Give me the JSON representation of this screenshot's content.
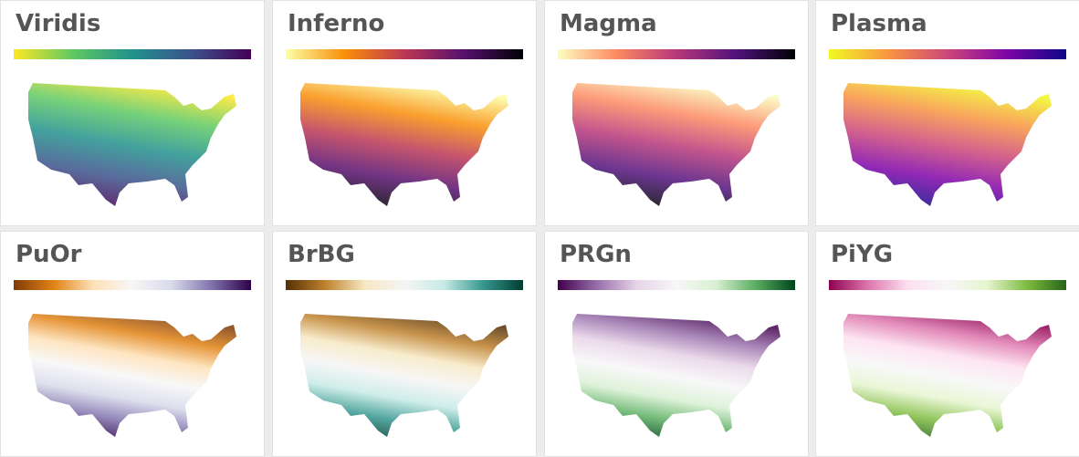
{
  "cards": [
    {
      "title": "Viridis",
      "colors": [
        "#fde725",
        "#5ec962",
        "#21918c",
        "#3b528b",
        "#440154"
      ]
    },
    {
      "title": "Inferno",
      "colors": [
        "#fcffa4",
        "#f98e09",
        "#bc3754",
        "#57106e",
        "#000004"
      ]
    },
    {
      "title": "Magma",
      "colors": [
        "#fcfdbf",
        "#fc8961",
        "#b73779",
        "#51127c",
        "#000004"
      ]
    },
    {
      "title": "Plasma",
      "colors": [
        "#f0f921",
        "#f89540",
        "#cc4778",
        "#7e03a8",
        "#0d0887"
      ]
    },
    {
      "title": "PuOr",
      "colors": [
        "#7f3b08",
        "#e08214",
        "#fee0b6",
        "#f7f7f7",
        "#d8daeb",
        "#8073ac",
        "#2d004b"
      ]
    },
    {
      "title": "BrBG",
      "colors": [
        "#543005",
        "#bf812d",
        "#f6e8c3",
        "#f5f5f5",
        "#c7eae5",
        "#35978f",
        "#003c30"
      ]
    },
    {
      "title": "PRGn",
      "colors": [
        "#40004b",
        "#9970ab",
        "#e7d4e8",
        "#f7f7f7",
        "#d9f0d3",
        "#5aae61",
        "#00441b"
      ]
    },
    {
      "title": "PiYG",
      "colors": [
        "#8e0152",
        "#de77ae",
        "#fde0ef",
        "#f7f7f7",
        "#e6f5d0",
        "#7fbc41",
        "#276419"
      ]
    }
  ]
}
